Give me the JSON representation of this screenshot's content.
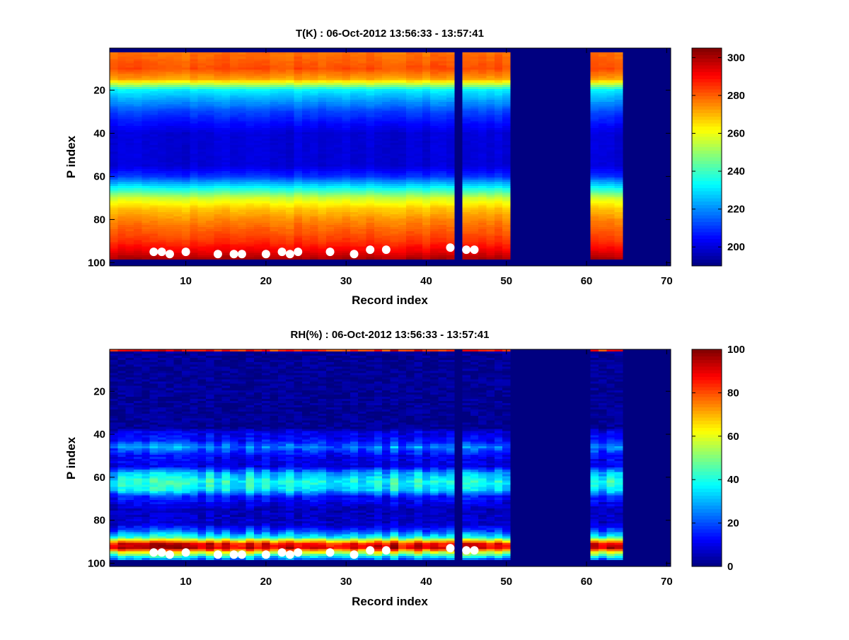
{
  "chart_data": [
    {
      "type": "heatmap",
      "title": "T(K) : 06-Oct-2012 13:56:33 - 13:57:41",
      "xlabel": "Record index",
      "ylabel": "P index",
      "xlim": [
        0.5,
        70.5
      ],
      "ylim": [
        0.5,
        101.5
      ],
      "y_reversed": true,
      "xticks": [
        10,
        20,
        30,
        40,
        50,
        60,
        70
      ],
      "yticks": [
        20,
        40,
        60,
        80,
        100
      ],
      "clim": [
        190,
        305
      ],
      "colorbar_ticks": [
        200,
        220,
        240,
        260,
        280,
        300
      ],
      "colormap": "jet",
      "n_records": 70,
      "n_levels": 101,
      "valid_records": [
        [
          1,
          43
        ],
        [
          45,
          50
        ],
        [
          61,
          64
        ]
      ],
      "valid_levels": [
        3,
        98
      ],
      "profile_levels": [
        3,
        10,
        15,
        20,
        30,
        40,
        55,
        60,
        65,
        70,
        75,
        80,
        90,
        95,
        98
      ],
      "profile_values": [
        278,
        282,
        272,
        232,
        212,
        200,
        200,
        210,
        232,
        256,
        268,
        275,
        285,
        293,
        300
      ],
      "record_variation": 4,
      "markers": {
        "x": [
          6,
          7,
          8,
          10,
          14,
          16,
          17,
          20,
          22,
          23,
          24,
          28,
          31,
          33,
          35,
          43,
          45,
          46
        ],
        "y": [
          95,
          95,
          96,
          95,
          96,
          96,
          96,
          96,
          95,
          96,
          95,
          95,
          96,
          94,
          94,
          93,
          94,
          94
        ],
        "color": "#ffffff"
      }
    },
    {
      "type": "heatmap",
      "title": "RH(%) : 06-Oct-2012 13:56:33 - 13:57:41",
      "xlabel": "Record index",
      "ylabel": "P index",
      "xlim": [
        0.5,
        70.5
      ],
      "ylim": [
        0.5,
        101.5
      ],
      "y_reversed": true,
      "xticks": [
        10,
        20,
        30,
        40,
        50,
        60,
        70
      ],
      "yticks": [
        20,
        40,
        60,
        80,
        100
      ],
      "clim": [
        0,
        100
      ],
      "colorbar_ticks": [
        0,
        20,
        40,
        60,
        80,
        100
      ],
      "colormap": "jet",
      "n_records": 70,
      "n_levels": 101,
      "valid_records": [
        [
          1,
          43
        ],
        [
          45,
          50
        ],
        [
          61,
          64
        ]
      ],
      "valid_levels": [
        1,
        98
      ],
      "profile_levels": [
        1,
        2,
        37,
        39,
        43,
        46,
        50,
        55,
        58,
        62,
        66,
        69,
        75,
        82,
        85,
        88,
        91,
        93,
        95,
        97,
        98
      ],
      "profile_values": [
        85,
        2,
        2,
        10,
        14,
        25,
        12,
        10,
        30,
        40,
        35,
        15,
        6,
        8,
        20,
        40,
        88,
        92,
        60,
        35,
        25
      ],
      "record_variation": 14,
      "markers": {
        "x": [
          6,
          7,
          8,
          10,
          14,
          16,
          17,
          20,
          22,
          23,
          24,
          28,
          31,
          33,
          35,
          43,
          45,
          46
        ],
        "y": [
          95,
          95,
          96,
          95,
          96,
          96,
          96,
          96,
          95,
          96,
          95,
          95,
          96,
          94,
          94,
          93,
          94,
          94
        ],
        "color": "#ffffff"
      }
    }
  ]
}
